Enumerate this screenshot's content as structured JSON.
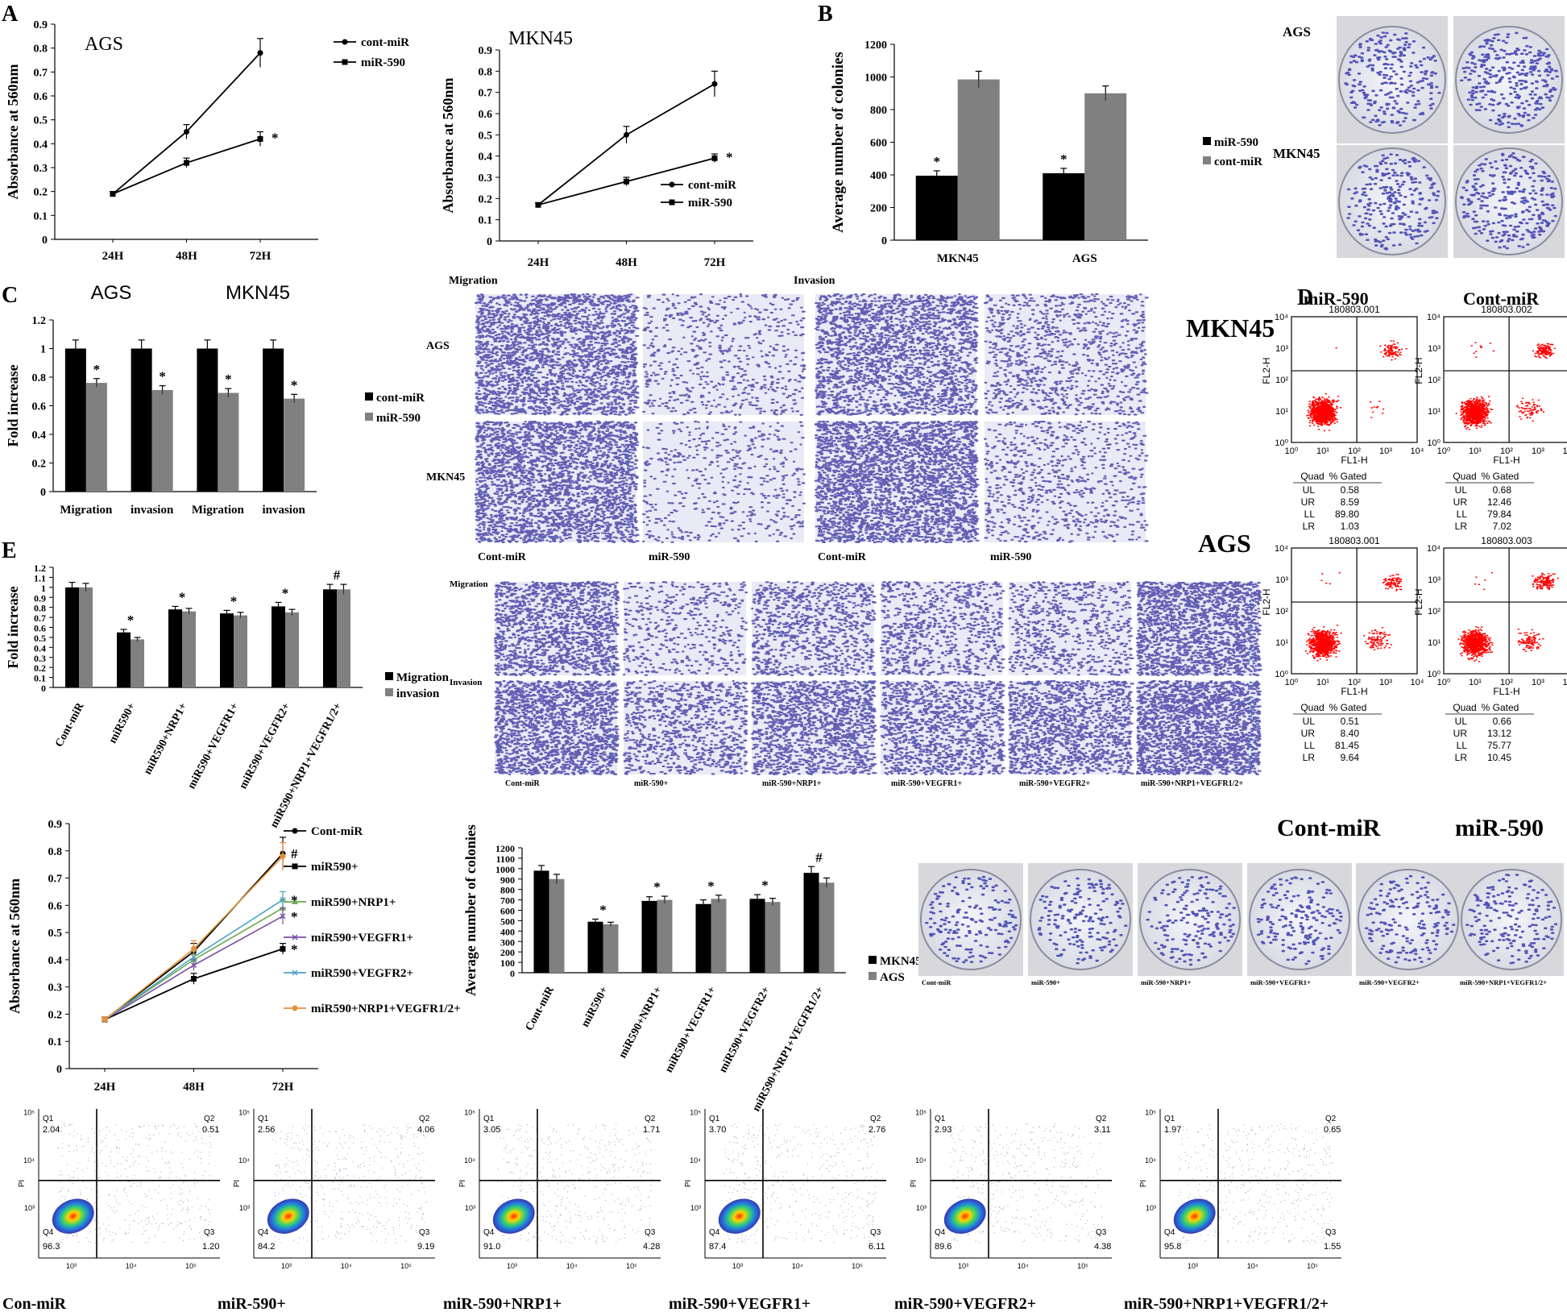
{
  "panel_letters": [
    "A",
    "B",
    "C",
    "D",
    "E"
  ],
  "chart_data": [
    {
      "type": "line",
      "id": "A1",
      "title": "AGS",
      "ylabel": "Absorbance at 560nm",
      "xlabel": "",
      "categories": [
        "24H",
        "48H",
        "72H"
      ],
      "ylim": [
        0,
        0.9
      ],
      "yticks": [
        "0",
        "0.1",
        "0.2",
        "0.3",
        "0.4",
        "0.5",
        "0.6",
        "0.7",
        "0.8",
        "0.9"
      ],
      "series": [
        {
          "name": "cont-miR",
          "values": [
            0.19,
            0.45,
            0.78
          ],
          "err": [
            0.01,
            0.03,
            0.06
          ],
          "marker": "circle",
          "color": "#000000"
        },
        {
          "name": "miR-590",
          "values": [
            0.19,
            0.32,
            0.42
          ],
          "err": [
            0.01,
            0.02,
            0.03
          ],
          "marker": "square",
          "color": "#000000"
        }
      ],
      "annotations": [
        {
          "text": "*",
          "series": 1,
          "index": 2
        }
      ],
      "legend": "top-right"
    },
    {
      "type": "line",
      "id": "A2",
      "title": "MKN45",
      "ylabel": "Absorbance at 560nm",
      "xlabel": "",
      "categories": [
        "24H",
        "48H",
        "72H"
      ],
      "ylim": [
        0,
        0.9
      ],
      "yticks": [
        "0",
        "0.1",
        "0.2",
        "0.3",
        "0.4",
        "0.5",
        "0.6",
        "0.7",
        "0.8",
        "0.9"
      ],
      "series": [
        {
          "name": "cont-miR",
          "values": [
            0.17,
            0.5,
            0.74
          ],
          "err": [
            0.01,
            0.04,
            0.06
          ],
          "marker": "circle",
          "color": "#000000"
        },
        {
          "name": "miR-590",
          "values": [
            0.17,
            0.28,
            0.39
          ],
          "err": [
            0.01,
            0.02,
            0.02
          ],
          "marker": "square",
          "color": "#000000"
        }
      ],
      "annotations": [
        {
          "text": "*",
          "series": 1,
          "index": 2
        }
      ],
      "legend": "bottom-right"
    },
    {
      "type": "bar",
      "id": "B",
      "title": "",
      "ylabel": "Average number of colonies",
      "xlabel": "",
      "categories": [
        "MKN45",
        "AGS"
      ],
      "ylim": [
        0,
        1200
      ],
      "yticks": [
        "0",
        "200",
        "400",
        "600",
        "800",
        "1000",
        "1200"
      ],
      "series": [
        {
          "name": "miR-590",
          "values": [
            395,
            410
          ],
          "err": [
            30,
            30
          ],
          "color": "#000000"
        },
        {
          "name": "cont-miR",
          "values": [
            985,
            900
          ],
          "err": [
            50,
            45
          ],
          "color": "#808080"
        }
      ],
      "annotations": [
        {
          "text": "*",
          "series": 0,
          "index": 0
        },
        {
          "text": "*",
          "series": 0,
          "index": 1
        }
      ],
      "legend": "right"
    },
    {
      "type": "bar",
      "id": "C",
      "title": "",
      "group_titles": [
        "AGS",
        "MKN45"
      ],
      "ylabel": "Fold increase",
      "xlabel": "",
      "categories": [
        "Migration",
        "invasion",
        "Migration",
        "invasion"
      ],
      "ylim": [
        0,
        1.2
      ],
      "yticks": [
        "0",
        "0.2",
        "0.4",
        "0.6",
        "0.8",
        "1",
        "1.2"
      ],
      "series": [
        {
          "name": "cont-miR",
          "values": [
            1,
            1,
            1,
            1
          ],
          "err": [
            0.06,
            0.06,
            0.06,
            0.06
          ],
          "color": "#000000"
        },
        {
          "name": "miR-590",
          "values": [
            0.76,
            0.71,
            0.69,
            0.65
          ],
          "err": [
            0.03,
            0.03,
            0.03,
            0.03
          ],
          "color": "#808080"
        }
      ],
      "annotations": [
        {
          "text": "*",
          "series": 1,
          "index": 0
        },
        {
          "text": "*",
          "series": 1,
          "index": 1
        },
        {
          "text": "*",
          "series": 1,
          "index": 2
        },
        {
          "text": "*",
          "series": 1,
          "index": 3
        }
      ],
      "legend": "right"
    },
    {
      "type": "bar",
      "id": "E1",
      "title": "",
      "ylabel": "Fold increase",
      "xlabel": "",
      "categories": [
        "Cont-miR",
        "miR590+",
        "miR590+NRP1+",
        "miR590+VEGFR1+",
        "miR590+VEGFR2+",
        "miR590+NRP1+VEGFR1/2+"
      ],
      "ylim": [
        0,
        1.2
      ],
      "yticks": [
        "0",
        "0.1",
        "0.2",
        "0.3",
        "0.4",
        "0.5",
        "0.6",
        "0.7",
        "0.8",
        "0.9",
        "1",
        "1.1",
        "1.2"
      ],
      "series": [
        {
          "name": "Migration",
          "values": [
            1.0,
            0.55,
            0.78,
            0.74,
            0.81,
            0.98
          ],
          "err": [
            0.05,
            0.03,
            0.03,
            0.03,
            0.04,
            0.05
          ],
          "color": "#000000"
        },
        {
          "name": "invasion",
          "values": [
            1.0,
            0.48,
            0.76,
            0.72,
            0.75,
            0.98
          ],
          "err": [
            0.04,
            0.02,
            0.03,
            0.03,
            0.03,
            0.05
          ],
          "color": "#808080"
        }
      ],
      "annotations": [
        {
          "text": "*",
          "index": 1
        },
        {
          "text": "*",
          "index": 2
        },
        {
          "text": "*",
          "index": 3
        },
        {
          "text": "*",
          "index": 4
        },
        {
          "text": "#",
          "index": 5
        }
      ],
      "legend": "right"
    },
    {
      "type": "line",
      "id": "E2",
      "title": "",
      "ylabel": "Absorbance at 560nm",
      "xlabel": "",
      "categories": [
        "24H",
        "48H",
        "72H"
      ],
      "ylim": [
        0,
        0.9
      ],
      "yticks": [
        "0",
        "0.1",
        "0.2",
        "0.3",
        "0.4",
        "0.5",
        "0.6",
        "0.7",
        "0.8",
        "0.9"
      ],
      "series": [
        {
          "name": "Cont-miR",
          "values": [
            0.18,
            0.43,
            0.79
          ],
          "err": [
            0.01,
            0.03,
            0.06
          ],
          "marker": "circle",
          "color": "#000000"
        },
        {
          "name": "miR590+",
          "values": [
            0.18,
            0.33,
            0.44
          ],
          "err": [
            0.01,
            0.02,
            0.02
          ],
          "marker": "square",
          "color": "#000000"
        },
        {
          "name": "miR590+NRP1+",
          "values": [
            0.18,
            0.4,
            0.59
          ],
          "err": [
            0.01,
            0.02,
            0.03
          ],
          "marker": "triangle",
          "color": "#6aa84f"
        },
        {
          "name": "miR590+VEGFR1+",
          "values": [
            0.18,
            0.38,
            0.56
          ],
          "err": [
            0.01,
            0.02,
            0.03
          ],
          "marker": "x",
          "color": "#7b4fa0"
        },
        {
          "name": "miR590+VEGFR2+",
          "values": [
            0.18,
            0.41,
            0.62
          ],
          "err": [
            0.01,
            0.02,
            0.03
          ],
          "marker": "x",
          "color": "#4ba3c3"
        },
        {
          "name": "miR590+NRP1+VEGFR1/2+",
          "values": [
            0.18,
            0.44,
            0.78
          ],
          "err": [
            0.01,
            0.03,
            0.05
          ],
          "marker": "circle",
          "color": "#e69138"
        }
      ],
      "annotations": [
        {
          "text": "#",
          "y": 0.79
        },
        {
          "text": "*",
          "y": 0.62
        },
        {
          "text": "*",
          "y": 0.56
        },
        {
          "text": "*",
          "y": 0.44
        }
      ],
      "legend": "right"
    },
    {
      "type": "bar",
      "id": "E3",
      "title": "",
      "ylabel": "Average number of colonies",
      "xlabel": "",
      "categories": [
        "Cont-miR",
        "miR590+",
        "miR590+NRP1+",
        "miR590+VEGFR1+",
        "miR590+VEGFR2+",
        "miR590+NRP1+VEGFR1/2+"
      ],
      "ylim": [
        0,
        1200
      ],
      "yticks": [
        "0",
        "100",
        "200",
        "300",
        "400",
        "500",
        "600",
        "700",
        "800",
        "900",
        "1000",
        "1100",
        "1200"
      ],
      "series": [
        {
          "name": "MKN45",
          "values": [
            980,
            490,
            690,
            660,
            710,
            960
          ],
          "err": [
            50,
            25,
            40,
            40,
            40,
            60
          ],
          "color": "#000000"
        },
        {
          "name": "AGS",
          "values": [
            900,
            465,
            700,
            710,
            680,
            865
          ],
          "err": [
            45,
            20,
            35,
            35,
            35,
            45
          ],
          "color": "#808080"
        }
      ],
      "annotations": [
        {
          "text": "*",
          "index": 1
        },
        {
          "text": "*",
          "index": 2
        },
        {
          "text": "*",
          "index": 3
        },
        {
          "text": "*",
          "index": 4
        },
        {
          "text": "#",
          "index": 5
        }
      ],
      "legend": "right"
    }
  ],
  "photos": {
    "B": {
      "rows": [
        "AGS",
        "MKN45"
      ]
    },
    "C": {
      "header_left": "Migration",
      "header_right": "Invasion",
      "rows": [
        "AGS",
        "MKN45"
      ],
      "cols": [
        "Cont-miR",
        "miR-590",
        "Cont-miR",
        "miR-590"
      ]
    },
    "E": {
      "rows": [
        "Migration",
        "Invasion"
      ],
      "cols": [
        "Cont-miR",
        "miR-590+",
        "miR-590+NRP1+",
        "miR-590+VEGFR1+",
        "miR-590+VEGFR2+",
        "miR-590+NRP1+VEGFR1/2+"
      ]
    },
    "E_colony": {
      "head_left": "Cont-miR",
      "head_right": "miR-590",
      "cols": [
        "Cont-miR",
        "miR-590+",
        "miR-590+NRP1+",
        "miR-590+VEGFR1+",
        "miR-590+VEGFR2+",
        "miR-590+NRP1+VEGFR1/2+"
      ]
    }
  },
  "flow_D": {
    "row_labels": [
      "MKN45",
      "AGS"
    ],
    "col_titles": [
      "miR-590",
      "Cont-miR"
    ],
    "plots": [
      {
        "id": "180803.001",
        "table": [
          [
            "UL",
            "0.58"
          ],
          [
            "UR",
            "8.59"
          ],
          [
            "LL",
            "89.80"
          ],
          [
            "LR",
            "1.03"
          ]
        ]
      },
      {
        "id": "180803.002",
        "table": [
          [
            "UL",
            "0.68"
          ],
          [
            "UR",
            "12.46"
          ],
          [
            "LL",
            "79.84"
          ],
          [
            "LR",
            "7.02"
          ]
        ]
      },
      {
        "id": "180803.001",
        "table": [
          [
            "UL",
            "0.51"
          ],
          [
            "UR",
            "8.40"
          ],
          [
            "LL",
            "81.45"
          ],
          [
            "LR",
            "9.64"
          ]
        ]
      },
      {
        "id": "180803.003",
        "table": [
          [
            "UL",
            "0.66"
          ],
          [
            "UR",
            "13.12"
          ],
          [
            "LL",
            "75.77"
          ],
          [
            "LR",
            "10.45"
          ]
        ]
      }
    ],
    "table_headers": [
      "Quad",
      "% Gated"
    ],
    "xaxis": "FL1-H",
    "yaxis": "FL2-H"
  },
  "flow_E": {
    "yaxis": "PI",
    "plots": [
      {
        "label": "Con-miR",
        "Q1": "2.04",
        "Q2": "0.51",
        "Q3": "1.20",
        "Q4": "96.3"
      },
      {
        "label": "miR-590+",
        "Q1": "2.56",
        "Q2": "4.06",
        "Q3": "9.19",
        "Q4": "84.2"
      },
      {
        "label": "miR-590+NRP1+",
        "Q1": "3.05",
        "Q2": "1.71",
        "Q3": "4.28",
        "Q4": "91.0"
      },
      {
        "label": "miR-590+VEGFR1+",
        "Q1": "3.70",
        "Q2": "2.76",
        "Q3": "6.11",
        "Q4": "87.4"
      },
      {
        "label": "miR-590+VEGFR2+",
        "Q1": "2.93",
        "Q2": "3.11",
        "Q3": "4.38",
        "Q4": "89.6"
      },
      {
        "label": "miR-590+NRP1+VEGFR1/2+",
        "Q1": "1.97",
        "Q2": "0.65",
        "Q3": "1.55",
        "Q4": "95.8"
      }
    ]
  }
}
